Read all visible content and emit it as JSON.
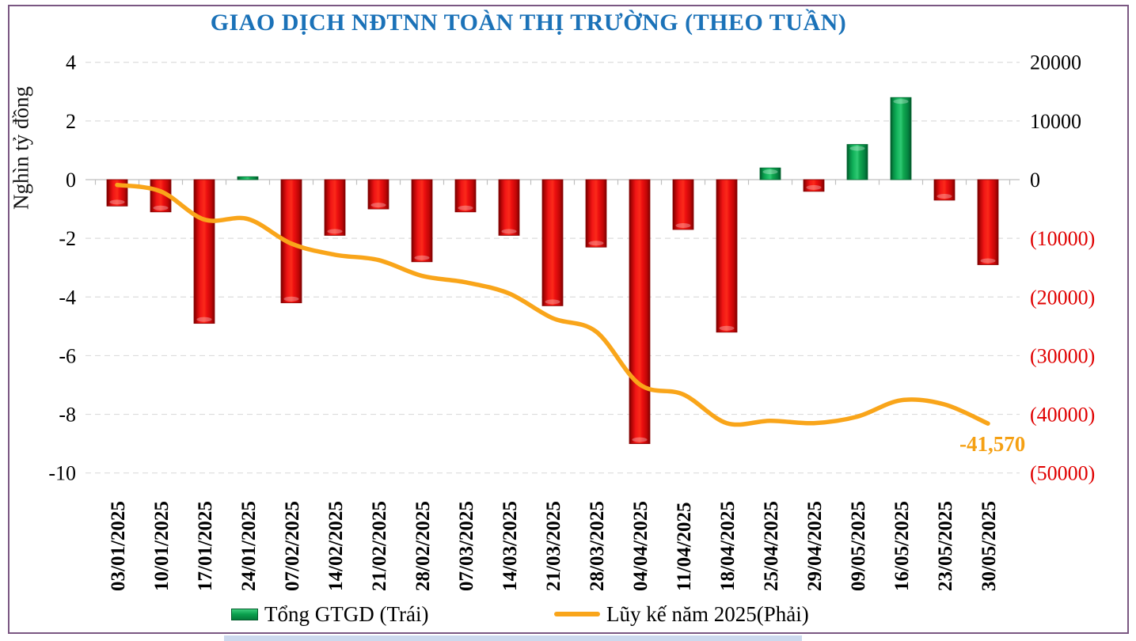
{
  "title": "GIAO DỊCH NĐTNN TOÀN THỊ TRƯỜNG (THEO TUẦN)",
  "colors": {
    "title": "#1B72B8",
    "bar_negative": "#E81010",
    "bar_positive": "#0CA24F",
    "line": "#F9A51A",
    "negative_tick_text": "#E00000",
    "positive_tick_text": "#000000",
    "gridline": "#DCDCDC",
    "axis_line": "#BFBFBF",
    "frame_border": "#7A5782",
    "annotation": "#F5A013"
  },
  "legend": {
    "bar_label": "Tổng GTGD (Trái)",
    "line_label": "Lũy kế năm 2025(Phải)"
  },
  "chart_data": {
    "type": "bar",
    "combo": "bar + line (dual axis)",
    "title": "GIAO DỊCH NĐTNN TOÀN THỊ TRƯỜNG (THEO TUẦN)",
    "categories": [
      "03/01/2025",
      "10/01/2025",
      "17/01/2025",
      "24/01/2025",
      "07/02/2025",
      "14/02/2025",
      "21/02/2025",
      "28/02/2025",
      "07/03/2025",
      "14/03/2025",
      "21/03/2025",
      "28/03/2025",
      "04/04/2025",
      "11/04/2025",
      "18/04/2025",
      "25/04/2025",
      "29/04/2025",
      "09/05/2025",
      "16/05/2025",
      "23/05/2025",
      "30/05/2025"
    ],
    "series": [
      {
        "name": "Tổng GTGD (Trái)",
        "type": "bar",
        "axis": "left",
        "unit": "nghìn tỷ đồng",
        "values": [
          -0.9,
          -1.1,
          -4.9,
          0.1,
          -4.2,
          -1.9,
          -1.0,
          -2.8,
          -1.1,
          -1.9,
          -4.3,
          -2.3,
          -9.0,
          -1.7,
          -5.2,
          0.4,
          -0.4,
          1.2,
          2.8,
          -0.7,
          -2.9
        ]
      },
      {
        "name": "Lũy kế năm 2025(Phải)",
        "type": "line",
        "axis": "right",
        "unit": "tỷ đồng",
        "values": [
          -900,
          -2000,
          -6800,
          -6700,
          -10900,
          -12800,
          -13700,
          -16400,
          -17500,
          -19400,
          -23600,
          -25900,
          -34900,
          -36600,
          -41500,
          -41100,
          -41500,
          -40400,
          -37600,
          -38300,
          -41570
        ]
      }
    ],
    "left_axis": {
      "label": "Nghìn tỷ đồng",
      "tick_labels": [
        "4",
        "2",
        "0",
        "-2",
        "-4",
        "-6",
        "-8",
        "-10"
      ],
      "tick_values": [
        4,
        2,
        0,
        -2,
        -4,
        -6,
        -8,
        -10
      ],
      "range": [
        -10,
        4
      ]
    },
    "right_axis": {
      "tick_labels": [
        "20000",
        "10000",
        "0",
        "(10000)",
        "(20000)",
        "(30000)",
        "(40000)",
        "(50000)"
      ],
      "tick_values": [
        20000,
        10000,
        0,
        -10000,
        -20000,
        -30000,
        -40000,
        -50000
      ],
      "range": [
        -50000,
        20000
      ]
    },
    "annotation": {
      "text": "-41,570",
      "value": -41570
    },
    "grid": "horizontal dashed",
    "legend_position": "bottom"
  }
}
